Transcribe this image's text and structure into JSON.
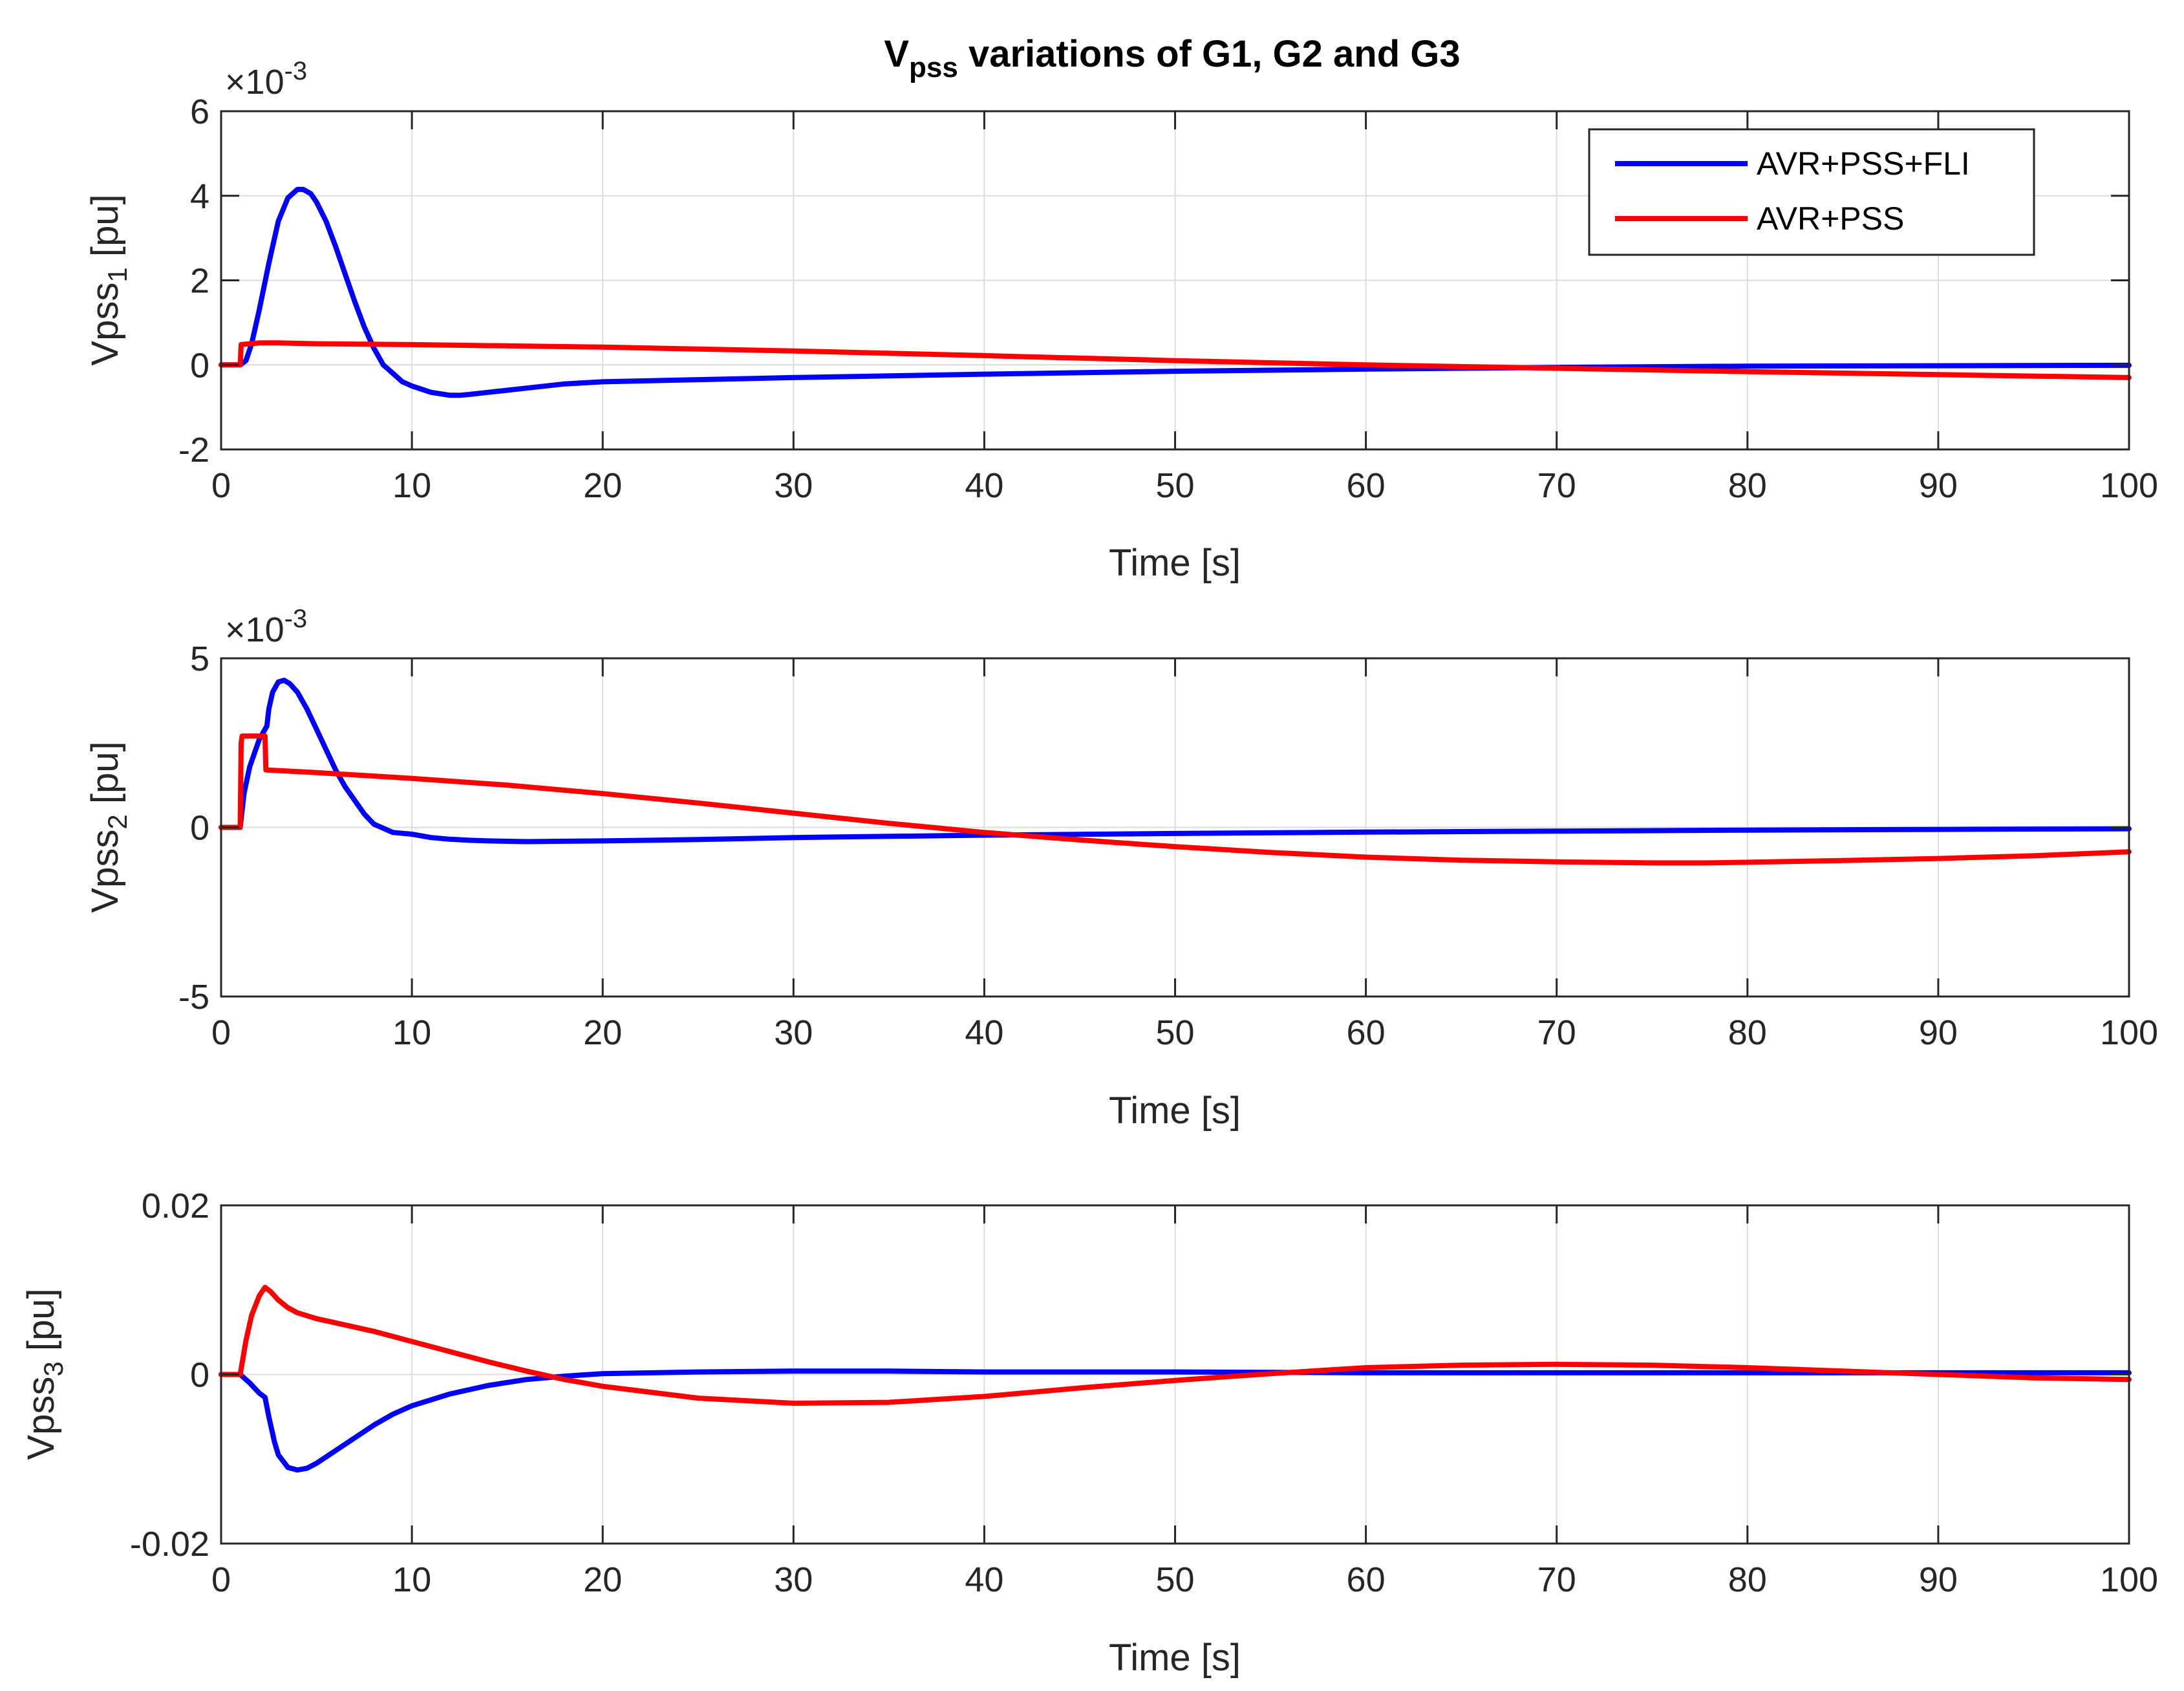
{
  "chart_data": [
    {
      "type": "line",
      "title_main": "V",
      "title_sub": "pss",
      "title_rest": " variations of G1, G2 and G3",
      "xlabel": "Time [s]",
      "ylabel_main": "Vpss",
      "ylabel_sub": "1",
      "ylabel_unit": " [pu]",
      "exponent": "×10",
      "exponent_power": "-3",
      "xlim": [
        0,
        100
      ],
      "ylim": [
        -2,
        6
      ],
      "xticks": [
        "0",
        "10",
        "20",
        "30",
        "40",
        "50",
        "60",
        "70",
        "80",
        "90",
        "100"
      ],
      "yticks": [
        "-2",
        "0",
        "2",
        "4",
        "6"
      ],
      "grid": true,
      "legend_position": "top-right",
      "legend": [
        "AVR+PSS+FLI",
        "AVR+PSS"
      ],
      "series": [
        {
          "name": "AVR+PSS+FLI",
          "color": "#0000ff",
          "x": [
            0,
            1,
            1.3,
            1.6,
            2,
            2.5,
            3,
            3.5,
            4,
            4.3,
            4.7,
            5,
            5.5,
            6,
            6.5,
            7,
            7.5,
            8,
            8.5,
            9,
            9.5,
            10,
            11,
            12,
            12.5,
            13,
            14,
            15,
            16,
            18,
            20,
            25,
            30,
            40,
            50,
            60,
            70,
            80,
            90,
            100
          ],
          "y": [
            0,
            0,
            0.1,
            0.5,
            1.3,
            2.4,
            3.4,
            3.95,
            4.15,
            4.15,
            4.05,
            3.85,
            3.4,
            2.8,
            2.15,
            1.5,
            0.9,
            0.4,
            0.0,
            -0.2,
            -0.4,
            -0.5,
            -0.65,
            -0.72,
            -0.72,
            -0.7,
            -0.65,
            -0.6,
            -0.55,
            -0.45,
            -0.4,
            -0.35,
            -0.3,
            -0.22,
            -0.15,
            -0.1,
            -0.06,
            -0.03,
            -0.02,
            -0.01
          ]
        },
        {
          "name": "AVR+PSS",
          "color": "#ff0000",
          "x": [
            0,
            1,
            1.05,
            1.5,
            2,
            3,
            5,
            10,
            20,
            30,
            40,
            50,
            60,
            70,
            80,
            90,
            100
          ],
          "y": [
            0,
            0,
            0.48,
            0.5,
            0.52,
            0.52,
            0.5,
            0.48,
            0.42,
            0.33,
            0.22,
            0.1,
            0.0,
            -0.08,
            -0.16,
            -0.23,
            -0.3
          ]
        }
      ]
    },
    {
      "type": "line",
      "xlabel": "Time [s]",
      "ylabel_main": "Vpss",
      "ylabel_sub": "2",
      "ylabel_unit": " [pu]",
      "exponent": "×10",
      "exponent_power": "-3",
      "xlim": [
        0,
        100
      ],
      "ylim": [
        -5,
        5
      ],
      "xticks": [
        "0",
        "10",
        "20",
        "30",
        "40",
        "50",
        "60",
        "70",
        "80",
        "90",
        "100"
      ],
      "yticks": [
        "-5",
        "0",
        "5"
      ],
      "grid": true,
      "series": [
        {
          "name": "AVR+PSS+FLI",
          "color": "#0000ff",
          "x": [
            0,
            1,
            1.2,
            1.5,
            2,
            2.4,
            2.5,
            2.7,
            3,
            3.3,
            3.6,
            4,
            4.5,
            5,
            5.5,
            6,
            6.5,
            7,
            7.5,
            8,
            9,
            10,
            11,
            12,
            13,
            14,
            16,
            18,
            20,
            25,
            30,
            40,
            50,
            60,
            70,
            80,
            90,
            100
          ],
          "y": [
            0,
            0,
            1.0,
            1.8,
            2.6,
            3.0,
            3.5,
            4.0,
            4.3,
            4.35,
            4.25,
            4.0,
            3.5,
            2.9,
            2.3,
            1.7,
            1.2,
            0.8,
            0.4,
            0.1,
            -0.15,
            -0.2,
            -0.3,
            -0.35,
            -0.38,
            -0.4,
            -0.42,
            -0.41,
            -0.4,
            -0.36,
            -0.3,
            -0.23,
            -0.18,
            -0.14,
            -0.11,
            -0.08,
            -0.06,
            -0.04
          ]
        },
        {
          "name": "AVR+PSS",
          "color": "#ff0000",
          "x": [
            0,
            1,
            1.05,
            1.1,
            2,
            2.3,
            2.35,
            5,
            10,
            15,
            20,
            25,
            30,
            35,
            40,
            45,
            50,
            55,
            60,
            65,
            70,
            75,
            78,
            80,
            85,
            90,
            95,
            100
          ],
          "y": [
            0,
            0,
            2.5,
            2.7,
            2.7,
            2.7,
            1.7,
            1.62,
            1.45,
            1.25,
            1.0,
            0.72,
            0.42,
            0.12,
            -0.15,
            -0.37,
            -0.57,
            -0.74,
            -0.88,
            -0.97,
            -1.02,
            -1.05,
            -1.05,
            -1.03,
            -0.98,
            -0.92,
            -0.84,
            -0.72
          ]
        }
      ]
    },
    {
      "type": "line",
      "xlabel": "Time [s]",
      "ylabel_main": "Vpss",
      "ylabel_sub": "3",
      "ylabel_unit": " [pu]",
      "xlim": [
        0,
        100
      ],
      "ylim": [
        -0.02,
        0.02
      ],
      "xticks": [
        "0",
        "10",
        "20",
        "30",
        "40",
        "50",
        "60",
        "70",
        "80",
        "90",
        "100"
      ],
      "yticks": [
        "-0.02",
        "0",
        "0.02"
      ],
      "grid": true,
      "series": [
        {
          "name": "AVR+PSS+FLI",
          "color": "#0000ff",
          "x": [
            0,
            1,
            1.5,
            2,
            2.3,
            2.5,
            2.8,
            3,
            3.5,
            4,
            4.5,
            5,
            6,
            7,
            8,
            9,
            10,
            12,
            14,
            16,
            18,
            20,
            25,
            30,
            35,
            40,
            50,
            60,
            70,
            80,
            90,
            100
          ],
          "y": [
            0,
            0,
            -0.001,
            -0.0022,
            -0.0027,
            -0.005,
            -0.008,
            -0.0095,
            -0.011,
            -0.0113,
            -0.0111,
            -0.0105,
            -0.009,
            -0.0075,
            -0.006,
            -0.0047,
            -0.0037,
            -0.0023,
            -0.0013,
            -0.0006,
            -0.0002,
            0.0001,
            0.0003,
            0.0004,
            0.0004,
            0.0003,
            0.0003,
            0.0002,
            0.0002,
            0.0002,
            0.0002,
            0.0002
          ]
        },
        {
          "name": "AVR+PSS",
          "color": "#ff0000",
          "x": [
            0,
            1,
            1.3,
            1.6,
            2,
            2.3,
            2.6,
            3,
            3.5,
            4,
            5,
            6,
            8,
            10,
            12,
            14,
            16,
            18,
            20,
            25,
            30,
            35,
            40,
            45,
            50,
            55,
            60,
            65,
            70,
            75,
            80,
            85,
            90,
            95,
            100
          ],
          "y": [
            0,
            0,
            0.004,
            0.007,
            0.0093,
            0.0103,
            0.0098,
            0.0088,
            0.0079,
            0.0073,
            0.0066,
            0.0061,
            0.0051,
            0.0039,
            0.0027,
            0.0015,
            0.0004,
            -0.0006,
            -0.0014,
            -0.0028,
            -0.0034,
            -0.0033,
            -0.0026,
            -0.0016,
            -0.0007,
            0.0001,
            0.0008,
            0.0011,
            0.0012,
            0.0011,
            0.0008,
            0.0004,
            0.0,
            -0.0004,
            -0.0006
          ]
        }
      ]
    }
  ]
}
